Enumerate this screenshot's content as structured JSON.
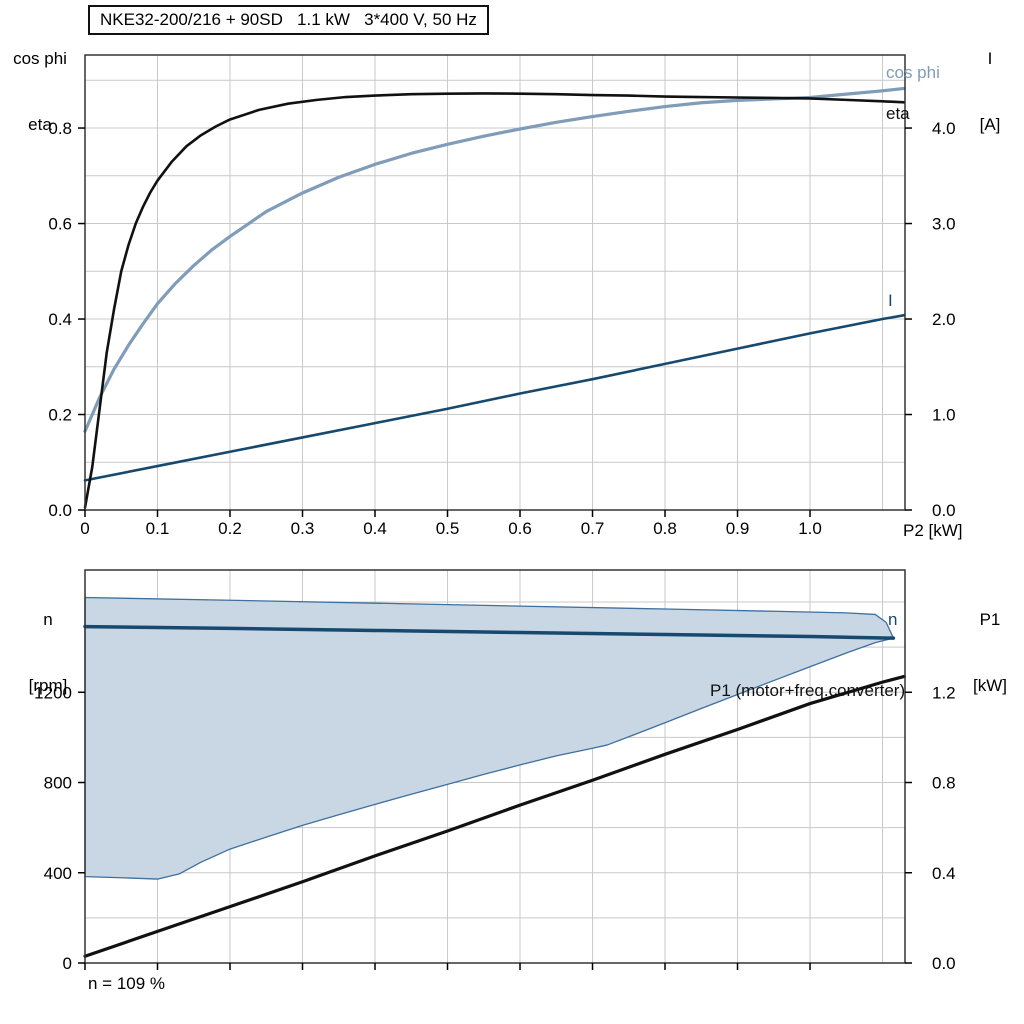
{
  "header": {
    "title": "NKE32-200/216 + 90SD   1.1 kW   3*400 V, 50 Hz"
  },
  "annotation_bottom": "n = 109 %",
  "chart_data": [
    {
      "type": "line",
      "title": "NKE32-200/216 + 90SD   1.1 kW   3*400 V, 50 Hz",
      "x": {
        "label": "P2 [kW]",
        "min": 0,
        "max": 1.131,
        "grid_step": 0.1,
        "ticks": [
          0,
          0.1,
          0.2,
          0.3,
          0.4,
          0.5,
          0.6,
          0.7,
          0.8,
          0.9,
          1.0
        ],
        "tick_labels": [
          "0",
          "0.1",
          "0.2",
          "0.3",
          "0.4",
          "0.5",
          "0.6",
          "0.7",
          "0.8",
          "0.9",
          "1.0"
        ]
      },
      "y_left": {
        "name": "cos phi",
        "name2": "eta",
        "min": 0,
        "max": 0.953,
        "grid_step": 0.1,
        "ticks": [
          0,
          0.2,
          0.4,
          0.6,
          0.8
        ],
        "tick_labels": [
          "0.0",
          "0.2",
          "0.4",
          "0.6",
          "0.8"
        ]
      },
      "y_right": {
        "name": "I",
        "unit": "[A]",
        "min": 0,
        "max": 4.765,
        "ticks": [
          0,
          1,
          2,
          3,
          4
        ],
        "tick_labels": [
          "0.0",
          "1.0",
          "2.0",
          "3.0",
          "4.0"
        ]
      },
      "series": [
        {
          "name": "I",
          "axis": "right",
          "color": "#17496f",
          "width": 2.6,
          "points": [
            [
              0,
              0.31
            ],
            [
              0.1,
              0.46
            ],
            [
              0.2,
              0.61
            ],
            [
              0.3,
              0.76
            ],
            [
              0.4,
              0.91
            ],
            [
              0.5,
              1.06
            ],
            [
              0.6,
              1.22
            ],
            [
              0.7,
              1.37
            ],
            [
              0.8,
              1.53
            ],
            [
              0.9,
              1.69
            ],
            [
              1.0,
              1.85
            ],
            [
              1.1,
              2.0
            ],
            [
              1.13,
              2.04
            ]
          ]
        },
        {
          "name": "cos phi",
          "axis": "left",
          "color": "#7f9cb8",
          "width": 3.2,
          "points": [
            [
              0,
              0.165
            ],
            [
              0.02,
              0.235
            ],
            [
              0.04,
              0.295
            ],
            [
              0.06,
              0.345
            ],
            [
              0.08,
              0.39
            ],
            [
              0.1,
              0.432
            ],
            [
              0.125,
              0.475
            ],
            [
              0.15,
              0.512
            ],
            [
              0.175,
              0.545
            ],
            [
              0.2,
              0.573
            ],
            [
              0.25,
              0.625
            ],
            [
              0.3,
              0.664
            ],
            [
              0.35,
              0.697
            ],
            [
              0.4,
              0.724
            ],
            [
              0.45,
              0.747
            ],
            [
              0.5,
              0.766
            ],
            [
              0.55,
              0.783
            ],
            [
              0.6,
              0.798
            ],
            [
              0.65,
              0.812
            ],
            [
              0.7,
              0.824
            ],
            [
              0.75,
              0.835
            ],
            [
              0.8,
              0.845
            ],
            [
              0.85,
              0.853
            ],
            [
              0.9,
              0.858
            ],
            [
              0.95,
              0.861
            ],
            [
              1.0,
              0.864
            ],
            [
              1.05,
              0.871
            ],
            [
              1.1,
              0.878
            ],
            [
              1.13,
              0.883
            ]
          ]
        },
        {
          "name": "eta",
          "axis": "left",
          "color": "#111111",
          "width": 2.6,
          "points": [
            [
              0,
              0.005
            ],
            [
              0.01,
              0.09
            ],
            [
              0.02,
              0.21
            ],
            [
              0.03,
              0.33
            ],
            [
              0.04,
              0.42
            ],
            [
              0.05,
              0.5
            ],
            [
              0.06,
              0.555
            ],
            [
              0.07,
              0.6
            ],
            [
              0.08,
              0.635
            ],
            [
              0.09,
              0.665
            ],
            [
              0.1,
              0.69
            ],
            [
              0.12,
              0.73
            ],
            [
              0.14,
              0.762
            ],
            [
              0.16,
              0.785
            ],
            [
              0.18,
              0.803
            ],
            [
              0.2,
              0.818
            ],
            [
              0.24,
              0.838
            ],
            [
              0.28,
              0.851
            ],
            [
              0.32,
              0.859
            ],
            [
              0.36,
              0.865
            ],
            [
              0.4,
              0.868
            ],
            [
              0.45,
              0.871
            ],
            [
              0.5,
              0.872
            ],
            [
              0.55,
              0.8725
            ],
            [
              0.6,
              0.872
            ],
            [
              0.65,
              0.871
            ],
            [
              0.7,
              0.869
            ],
            [
              0.75,
              0.868
            ],
            [
              0.8,
              0.866
            ],
            [
              0.85,
              0.865
            ],
            [
              0.9,
              0.864
            ],
            [
              0.95,
              0.863
            ],
            [
              1.0,
              0.862
            ],
            [
              1.05,
              0.859
            ],
            [
              1.1,
              0.856
            ],
            [
              1.13,
              0.854
            ]
          ]
        }
      ]
    },
    {
      "type": "line",
      "annotation": "n = 109 %",
      "x": {
        "label": "",
        "min": 0,
        "max": 1.131,
        "grid_step": 0.1,
        "ticks": [
          0,
          0.1,
          0.2,
          0.3,
          0.4,
          0.5,
          0.6,
          0.7,
          0.8,
          0.9,
          1.0
        ],
        "tick_labels": [
          "",
          "",
          "",
          "",
          "",
          "",
          "",
          "",
          "",
          "",
          ""
        ]
      },
      "y_left": {
        "name": "n",
        "unit": "[rpm]",
        "min": 0,
        "max": 1742,
        "grid_step": 200,
        "ticks": [
          0,
          400,
          800,
          1200
        ],
        "tick_labels": [
          "0",
          "400",
          "800",
          "1200"
        ]
      },
      "y_right": {
        "name": "P1",
        "unit": "[kW]",
        "min": 0,
        "max": 1.742,
        "ticks": [
          0,
          0.4,
          0.8,
          1.2
        ],
        "tick_labels": [
          "0.0",
          "0.4",
          "0.8",
          "1.2"
        ]
      },
      "area": {
        "name": "speed-operating-range",
        "fill": "#c9d6e3",
        "stroke": "#3e6f9e",
        "upper": [
          [
            0,
            1620
          ],
          [
            0.2,
            1608
          ],
          [
            0.4,
            1595
          ],
          [
            0.6,
            1582
          ],
          [
            0.8,
            1569
          ],
          [
            0.95,
            1559
          ],
          [
            1.05,
            1552
          ],
          [
            1.09,
            1545
          ],
          [
            1.105,
            1510
          ],
          [
            1.115,
            1440
          ]
        ],
        "lower": [
          [
            0,
            383
          ],
          [
            0.05,
            378
          ],
          [
            0.1,
            372
          ],
          [
            0.13,
            395
          ],
          [
            0.16,
            447
          ],
          [
            0.2,
            505
          ],
          [
            0.25,
            558
          ],
          [
            0.3,
            610
          ],
          [
            0.35,
            657
          ],
          [
            0.4,
            703
          ],
          [
            0.45,
            748
          ],
          [
            0.5,
            792
          ],
          [
            0.55,
            836
          ],
          [
            0.6,
            878
          ],
          [
            0.65,
            918
          ],
          [
            0.7,
            952
          ],
          [
            0.72,
            966
          ],
          [
            0.76,
            1015
          ],
          [
            0.8,
            1065
          ],
          [
            0.85,
            1128
          ],
          [
            0.9,
            1190
          ],
          [
            0.95,
            1252
          ],
          [
            1.0,
            1313
          ],
          [
            1.05,
            1374
          ],
          [
            1.09,
            1420
          ],
          [
            1.115,
            1440
          ]
        ]
      },
      "series": [
        {
          "name": "n",
          "axis": "left",
          "color": "#17496f",
          "width": 3.5,
          "points": [
            [
              0,
              1491
            ],
            [
              0.2,
              1483
            ],
            [
              0.4,
              1474
            ],
            [
              0.6,
              1465
            ],
            [
              0.8,
              1456
            ],
            [
              1.0,
              1447
            ],
            [
              1.115,
              1440
            ]
          ]
        },
        {
          "name": "P1 (motor+freq.converter)",
          "axis": "right",
          "color": "#111111",
          "width": 3.2,
          "points": [
            [
              0,
              0.03
            ],
            [
              0.1,
              0.14
            ],
            [
              0.2,
              0.25
            ],
            [
              0.3,
              0.36
            ],
            [
              0.4,
              0.475
            ],
            [
              0.5,
              0.585
            ],
            [
              0.6,
              0.7
            ],
            [
              0.7,
              0.81
            ],
            [
              0.8,
              0.925
            ],
            [
              0.9,
              1.035
            ],
            [
              1.0,
              1.15
            ],
            [
              1.1,
              1.245
            ],
            [
              1.13,
              1.27
            ]
          ]
        }
      ]
    }
  ]
}
